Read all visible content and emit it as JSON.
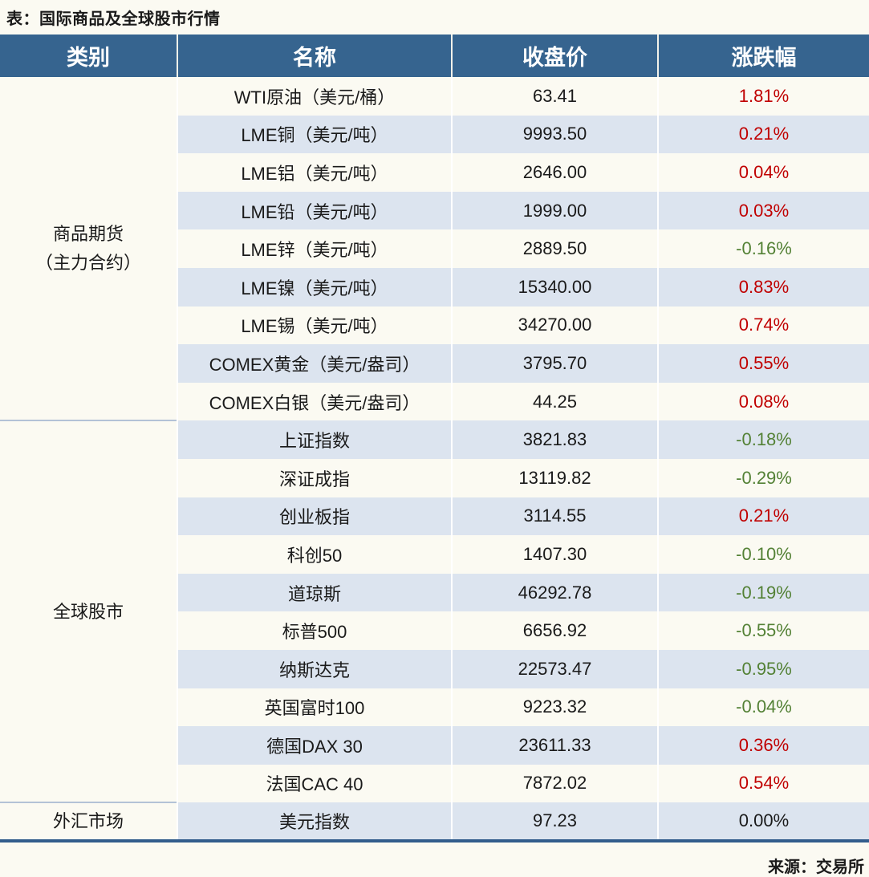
{
  "title": "表：国际商品及全球股市行情",
  "source": "来源：交易所",
  "colors": {
    "header_bg": "#36648f",
    "row_stripe": "#dce4ef",
    "row_base": "#fbfaf2",
    "up_red": "#c00000",
    "down_green": "#538135",
    "flat_black": "#1a1a1a",
    "bottom_rule": "#325d8c",
    "group_divider": "#b3c2d6"
  },
  "table": {
    "headers": [
      "类别",
      "名称",
      "收盘价",
      "涨跌幅"
    ],
    "groups": [
      {
        "category_lines": [
          "商品期货",
          "（主力合约）"
        ],
        "rows": [
          {
            "name": "WTI原油（美元/桶）",
            "close": "63.41",
            "change": "1.81%",
            "direction": "up"
          },
          {
            "name": "LME铜（美元/吨）",
            "close": "9993.50",
            "change": "0.21%",
            "direction": "up"
          },
          {
            "name": "LME铝（美元/吨）",
            "close": "2646.00",
            "change": "0.04%",
            "direction": "up"
          },
          {
            "name": "LME铅（美元/吨）",
            "close": "1999.00",
            "change": "0.03%",
            "direction": "up"
          },
          {
            "name": "LME锌（美元/吨）",
            "close": "2889.50",
            "change": "-0.16%",
            "direction": "down"
          },
          {
            "name": "LME镍（美元/吨）",
            "close": "15340.00",
            "change": "0.83%",
            "direction": "up"
          },
          {
            "name": "LME锡（美元/吨）",
            "close": "34270.00",
            "change": "0.74%",
            "direction": "up"
          },
          {
            "name": "COMEX黄金（美元/盎司）",
            "close": "3795.70",
            "change": "0.55%",
            "direction": "up"
          },
          {
            "name": "COMEX白银（美元/盎司）",
            "close": "44.25",
            "change": "0.08%",
            "direction": "up"
          }
        ]
      },
      {
        "category_lines": [
          "全球股市"
        ],
        "rows": [
          {
            "name": "上证指数",
            "close": "3821.83",
            "change": "-0.18%",
            "direction": "down"
          },
          {
            "name": "深证成指",
            "close": "13119.82",
            "change": "-0.29%",
            "direction": "down"
          },
          {
            "name": "创业板指",
            "close": "3114.55",
            "change": "0.21%",
            "direction": "up"
          },
          {
            "name": "科创50",
            "close": "1407.30",
            "change": "-0.10%",
            "direction": "down"
          },
          {
            "name": "道琼斯",
            "close": "46292.78",
            "change": "-0.19%",
            "direction": "down"
          },
          {
            "name": "标普500",
            "close": "6656.92",
            "change": "-0.55%",
            "direction": "down"
          },
          {
            "name": "纳斯达克",
            "close": "22573.47",
            "change": "-0.95%",
            "direction": "down"
          },
          {
            "name": "英国富时100",
            "close": "9223.32",
            "change": "-0.04%",
            "direction": "down"
          },
          {
            "name": "德国DAX 30",
            "close": "23611.33",
            "change": "0.36%",
            "direction": "up"
          },
          {
            "name": "法国CAC 40",
            "close": "7872.02",
            "change": "0.54%",
            "direction": "up"
          }
        ]
      },
      {
        "category_lines": [
          "外汇市场"
        ],
        "rows": [
          {
            "name": "美元指数",
            "close": "97.23",
            "change": "0.00%",
            "direction": "flat"
          }
        ]
      }
    ]
  }
}
